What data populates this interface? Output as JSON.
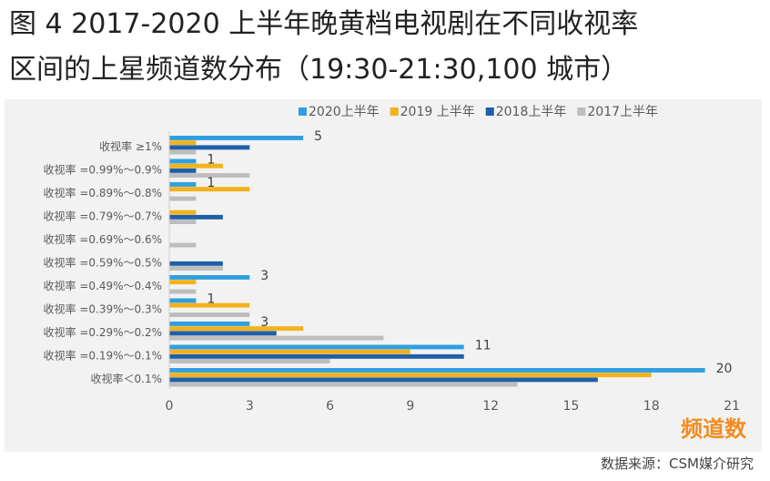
{
  "title_line1": "图 4 2017-2020 上半年晚黄档电视剧在不同收视率",
  "title_line2": "区间的上星频道数分布（19:30-21:30,100 城市）",
  "source": "数据来源：CSM媒介研究",
  "colors": {
    "2020上半年": "#2f9fe0",
    "2019 上半年": "#f2b21c",
    "2018上半年": "#1f5fa8",
    "2017上半年": "#bdbdbd",
    "xlabel": "#f28c1e",
    "panel": "#f2f2f2"
  },
  "chart_data": {
    "type": "bar",
    "orientation": "horizontal",
    "xlabel": "频道数",
    "xlim": [
      0,
      21
    ],
    "xticks": [
      0,
      3,
      6,
      9,
      12,
      15,
      18,
      21
    ],
    "legend_position": "top",
    "categories": [
      "收视率 ≥1%",
      "收视率 =0.99%～0.9%",
      "收视率 =0.89%～0.8%",
      "收视率 =0.79%～0.7%",
      "收视率 =0.69%～0.6%",
      "收视率 =0.59%～0.5%",
      "收视率 =0.49%～0.4%",
      "收视率 =0.39%～0.3%",
      "收视率 =0.29%～0.2%",
      "收视率 =0.19%～0.1%",
      "收视率＜0.1%"
    ],
    "series": [
      {
        "name": "2020上半年",
        "values": [
          5,
          1,
          1,
          0,
          0,
          0,
          3,
          1,
          3,
          11,
          20
        ],
        "labels": [
          "5",
          "1",
          "1",
          "",
          "",
          "",
          "3",
          "1",
          "3",
          "11",
          "20"
        ]
      },
      {
        "name": "2019 上半年",
        "values": [
          1,
          2,
          3,
          1,
          0,
          0,
          1,
          3,
          5,
          9,
          18
        ]
      },
      {
        "name": "2018上半年",
        "values": [
          3,
          1,
          0,
          2,
          0,
          2,
          0,
          0,
          4,
          11,
          16
        ]
      },
      {
        "name": "2017上半年",
        "values": [
          1,
          3,
          1,
          1,
          1,
          2,
          1,
          3,
          8,
          6,
          13
        ]
      }
    ]
  }
}
